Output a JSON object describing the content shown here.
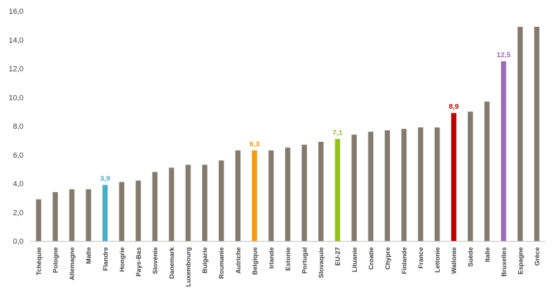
{
  "chart_data": {
    "type": "bar",
    "title": "",
    "xlabel": "",
    "ylabel": "",
    "ylim": [
      0,
      16
    ],
    "yticks": [
      "0,0",
      "2,0",
      "4,0",
      "6,0",
      "8,0",
      "10,0",
      "12,0",
      "14,0",
      "16,0"
    ],
    "grid": false,
    "legend": "none",
    "categories": [
      "Tchèquie",
      "Pologne",
      "Allemagne",
      "Malte",
      "Flandre",
      "Hongrie",
      "Pays-Bas",
      "Slovénie",
      "Danemark",
      "Luxembourg",
      "Bulgarie",
      "Roumanie",
      "Autriche",
      "Belgique",
      "Irlande",
      "Estonie",
      "Portugal",
      "Slovaquie",
      "EU-27",
      "Lituanie",
      "Croatie",
      "Chypre",
      "Finlande",
      "France",
      "Lettonie",
      "Wallonie",
      "Suède",
      "Italie",
      "Bruxelles",
      "Espagne",
      "Grèce"
    ],
    "values": [
      2.9,
      3.4,
      3.6,
      3.6,
      3.9,
      4.1,
      4.2,
      4.8,
      5.1,
      5.3,
      5.3,
      5.6,
      6.3,
      6.3,
      6.3,
      6.5,
      6.7,
      6.9,
      7.1,
      7.4,
      7.6,
      7.7,
      7.8,
      7.9,
      7.9,
      8.9,
      9.0,
      9.7,
      12.5,
      14.9,
      14.9
    ],
    "default_color": "#847a6e",
    "highlights": [
      {
        "category": "Flandre",
        "color": "#4bacc6",
        "label": "3,9"
      },
      {
        "category": "Belgique",
        "color": "#f79b0e",
        "label": "6,3"
      },
      {
        "category": "EU-27",
        "color": "#92c01f",
        "label": "7,1"
      },
      {
        "category": "Wallonie",
        "color": "#c00000",
        "label": "8,9"
      },
      {
        "category": "Bruxelles",
        "color": "#9b6cb5",
        "label": "12,5"
      }
    ],
    "axis_color": "#bfbfbf"
  }
}
